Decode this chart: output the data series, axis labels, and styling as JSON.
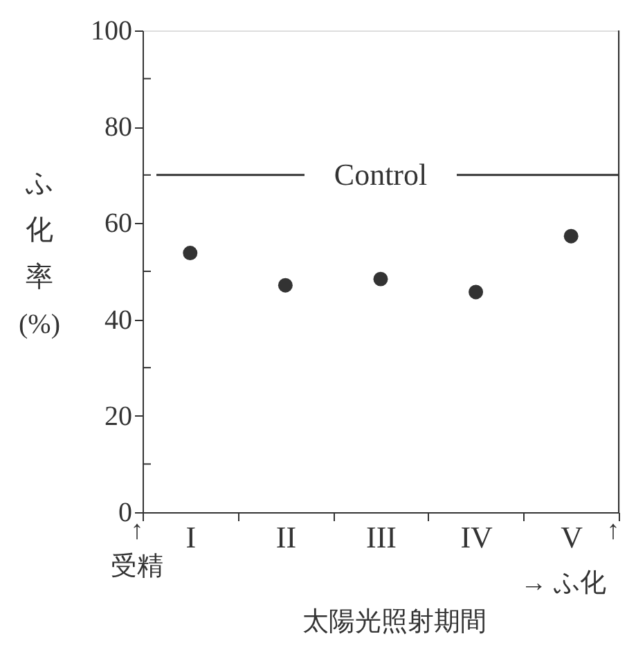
{
  "chart_data": {
    "type": "scatter",
    "ylabel": "ふ化率(%)",
    "xlabel": "太陽光照射期間",
    "categories": [
      "I",
      "II",
      "III",
      "IV",
      "V"
    ],
    "values": [
      53.8,
      47.1,
      48.4,
      45.7,
      57.3
    ],
    "color": "#333333",
    "marker": "circle",
    "ylim": [
      0,
      100
    ],
    "yticks": [
      0,
      {
        "value": 10,
        "label": null
      },
      20,
      {
        "value": 30,
        "label": null
      },
      40,
      {
        "value": 50,
        "label": null
      },
      60,
      {
        "value": 70,
        "label": null
      },
      80,
      {
        "value": 90,
        "label": null
      },
      100
    ],
    "ref_lines": [
      {
        "axis": "y",
        "value": 70,
        "label": "Control",
        "color": "#333333"
      }
    ],
    "annotations": [
      "↑\n受精",
      "→ ふ化",
      "↑"
    ],
    "grid": false
  }
}
